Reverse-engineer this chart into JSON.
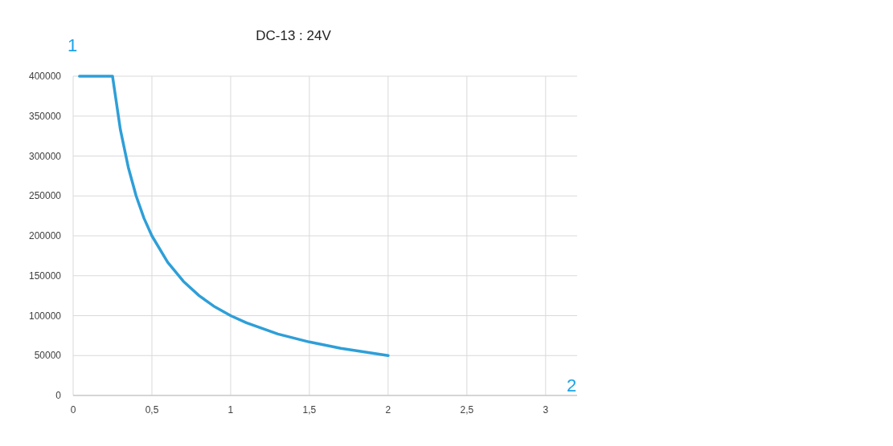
{
  "chart_data": {
    "type": "line",
    "title": "DC-13 : 24V",
    "ylabel": "1",
    "xlabel": "2",
    "x": [
      0.04,
      0.25,
      0.3,
      0.35,
      0.4,
      0.45,
      0.5,
      0.6,
      0.7,
      0.8,
      0.9,
      1,
      1.1,
      1.2,
      1.3,
      1.4,
      1.5,
      1.6,
      1.7,
      1.8,
      1.9,
      2
    ],
    "series": [
      {
        "color": "#2e9fd8",
        "values": [
          400000,
          400000,
          333000,
          286000,
          250000,
          222000,
          200000,
          167000,
          143000,
          125000,
          111000,
          100000,
          91000,
          84000,
          77000,
          72000,
          67000,
          63000,
          59000,
          56000,
          53000,
          50000
        ]
      }
    ],
    "xlim": [
      0,
      3.2
    ],
    "xticks": [
      0,
      {
        "value": 0.5,
        "label": "0,5"
      },
      1,
      {
        "value": 1.5,
        "label": "1,5"
      },
      2,
      {
        "value": 2.5,
        "label": "2,5"
      },
      3
    ],
    "ylim": [
      0,
      400000
    ],
    "yticks": [
      0,
      50000,
      100000,
      150000,
      200000,
      250000,
      300000,
      350000,
      400000
    ],
    "grid": true,
    "marker": "none",
    "line_style": "solid"
  }
}
